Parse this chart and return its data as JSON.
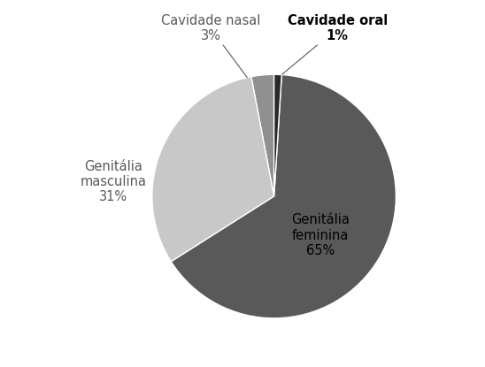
{
  "slices": [
    {
      "label": "Genitália\nfeminina\n65%",
      "value": 65,
      "color": "#595959"
    },
    {
      "label": "Genitália\nmasculina\n31%",
      "value": 31,
      "color": "#c8c8c8"
    },
    {
      "label": "Cavidade nasal\n3%",
      "value": 3,
      "color": "#909090"
    },
    {
      "label": "Cavidade oral\n1%",
      "value": 1,
      "color": "#282828"
    }
  ],
  "startangle": 90,
  "background_color": "#ffffff",
  "edge_color": "#ffffff",
  "line_width": 1.0,
  "label_fontsize": 10.5,
  "fig_width": 5.48,
  "fig_height": 4.15,
  "dpi": 100
}
